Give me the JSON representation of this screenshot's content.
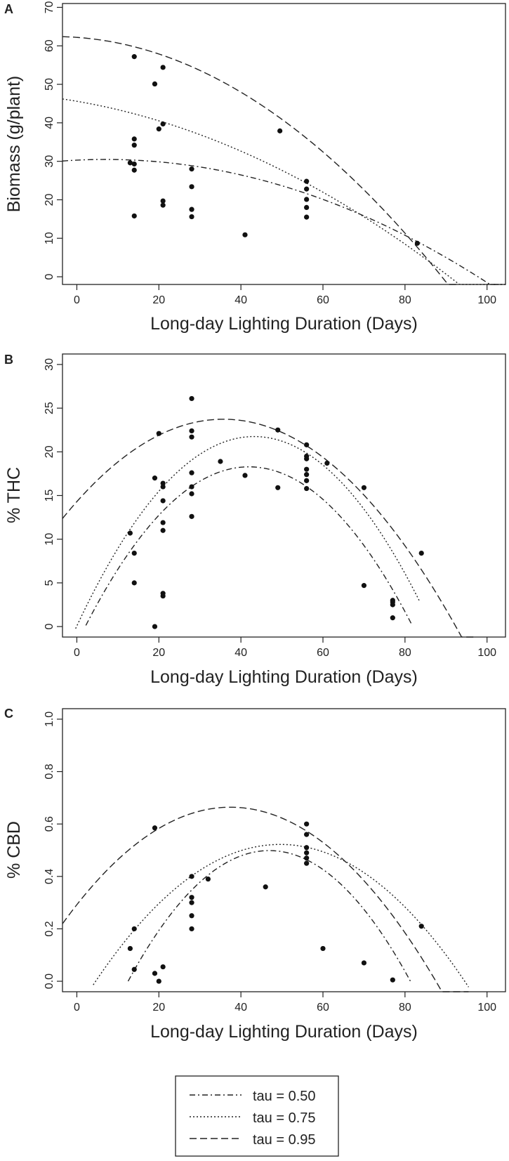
{
  "chart_data": [
    {
      "panel": "A",
      "type": "scatter",
      "title": "",
      "xlabel": "Long-day Lighting Duration (Days)",
      "ylabel": "Biomass (g/plant)",
      "xlim": [
        -3.5,
        104.5
      ],
      "ylim": [
        -2,
        71
      ],
      "x_ticks": [
        0,
        20,
        40,
        60,
        80,
        100
      ],
      "y_ticks": [
        0,
        10,
        20,
        30,
        40,
        50,
        60,
        70
      ],
      "points": [
        {
          "x": 14,
          "y": 57.2
        },
        {
          "x": 21,
          "y": 54.4
        },
        {
          "x": 19,
          "y": 50.1
        },
        {
          "x": 21,
          "y": 39.7
        },
        {
          "x": 20,
          "y": 38.4
        },
        {
          "x": 49.5,
          "y": 37.9
        },
        {
          "x": 14,
          "y": 35.8
        },
        {
          "x": 14,
          "y": 34.2
        },
        {
          "x": 13,
          "y": 29.6
        },
        {
          "x": 14,
          "y": 29.3
        },
        {
          "x": 28,
          "y": 28.0
        },
        {
          "x": 14,
          "y": 27.7
        },
        {
          "x": 56,
          "y": 24.8
        },
        {
          "x": 28,
          "y": 23.4
        },
        {
          "x": 56,
          "y": 22.8
        },
        {
          "x": 56,
          "y": 20.1
        },
        {
          "x": 21,
          "y": 19.7
        },
        {
          "x": 21,
          "y": 18.6
        },
        {
          "x": 56,
          "y": 18.0
        },
        {
          "x": 28,
          "y": 17.5
        },
        {
          "x": 14,
          "y": 15.8
        },
        {
          "x": 28,
          "y": 15.6
        },
        {
          "x": 56,
          "y": 15.5
        },
        {
          "x": 41,
          "y": 10.9
        },
        {
          "x": 83,
          "y": 8.7
        }
      ],
      "curves": [
        {
          "tau": "0.50",
          "style": "dashdot",
          "model": "quadratic",
          "coef": [
            30.3,
            0.052,
            -0.0037
          ],
          "x_range": [
            -3.5,
            104.5
          ]
        },
        {
          "tau": "0.75",
          "style": "dotted",
          "model": "quadratic",
          "coef": [
            45.6,
            -0.184,
            -0.0035
          ],
          "x_range": [
            -3.5,
            104.5
          ]
        },
        {
          "tau": "0.95",
          "style": "dashed",
          "model": "quadratic",
          "coef": [
            62.2,
            -0.076,
            -0.007
          ],
          "x_range": [
            -3.5,
            93.2
          ]
        }
      ]
    },
    {
      "panel": "B",
      "type": "scatter",
      "title": "",
      "xlabel": "Long-day Lighting Duration (Days)",
      "ylabel": "% THC",
      "xlim": [
        -3.5,
        104.5
      ],
      "ylim": [
        -1.2,
        31.2
      ],
      "x_ticks": [
        0,
        20,
        40,
        60,
        80,
        100
      ],
      "y_ticks": [
        0,
        5,
        10,
        15,
        20,
        25,
        30
      ],
      "points": [
        {
          "x": 28,
          "y": 26.1
        },
        {
          "x": 49,
          "y": 22.5
        },
        {
          "x": 28,
          "y": 22.4
        },
        {
          "x": 20,
          "y": 22.1
        },
        {
          "x": 28,
          "y": 21.7
        },
        {
          "x": 56,
          "y": 20.8
        },
        {
          "x": 56,
          "y": 19.5
        },
        {
          "x": 56,
          "y": 19.2
        },
        {
          "x": 35,
          "y": 18.9
        },
        {
          "x": 61,
          "y": 18.7
        },
        {
          "x": 56,
          "y": 18.0
        },
        {
          "x": 28,
          "y": 17.6
        },
        {
          "x": 56,
          "y": 17.4
        },
        {
          "x": 41,
          "y": 17.3
        },
        {
          "x": 19,
          "y": 17.0
        },
        {
          "x": 56,
          "y": 16.7
        },
        {
          "x": 21,
          "y": 16.4
        },
        {
          "x": 21,
          "y": 16.0
        },
        {
          "x": 28,
          "y": 16.0
        },
        {
          "x": 49,
          "y": 15.9
        },
        {
          "x": 70,
          "y": 15.9
        },
        {
          "x": 56,
          "y": 15.8
        },
        {
          "x": 28,
          "y": 15.2
        },
        {
          "x": 21,
          "y": 14.4
        },
        {
          "x": 28,
          "y": 12.6
        },
        {
          "x": 21,
          "y": 11.9
        },
        {
          "x": 21,
          "y": 11.0
        },
        {
          "x": 13,
          "y": 10.7
        },
        {
          "x": 14,
          "y": 8.4
        },
        {
          "x": 84,
          "y": 8.4
        },
        {
          "x": 14,
          "y": 5.0
        },
        {
          "x": 70,
          "y": 4.7
        },
        {
          "x": 21,
          "y": 3.8
        },
        {
          "x": 21,
          "y": 3.5
        },
        {
          "x": 77,
          "y": 3.0
        },
        {
          "x": 77,
          "y": 2.8
        },
        {
          "x": 77,
          "y": 2.5
        },
        {
          "x": 77,
          "y": 1.0
        },
        {
          "x": 19,
          "y": 0.0
        }
      ],
      "curves": [
        {
          "tau": "0.50",
          "style": "dashdot",
          "model": "quadratic",
          "coef": [
            -1.93,
            0.963,
            -0.01147
          ],
          "x_range": [
            2.2,
            81.8
          ]
        },
        {
          "tau": "0.75",
          "style": "dotted",
          "model": "quadratic",
          "coef": [
            0.07,
            1.003,
            -0.0116
          ],
          "x_range": [
            -0.3,
            83.6
          ]
        },
        {
          "tau": "0.95",
          "style": "dashed",
          "model": "quadratic",
          "coef": [
            14.3,
            0.528,
            -0.00739
          ],
          "x_range": [
            -3.5,
            96.8
          ]
        }
      ]
    },
    {
      "panel": "C",
      "type": "scatter",
      "title": "",
      "xlabel": "Long-day Lighting Duration (Days)",
      "ylabel": "% CBD",
      "xlim": [
        -3.5,
        104.5
      ],
      "ylim": [
        -0.04,
        1.04
      ],
      "x_ticks": [
        0,
        20,
        40,
        60,
        80,
        100
      ],
      "y_ticks": [
        "0.0",
        "0.2",
        "0.4",
        "0.6",
        "0.8",
        "1.0"
      ],
      "points": [
        {
          "x": 56,
          "y": 0.6
        },
        {
          "x": 19,
          "y": 0.585
        },
        {
          "x": 56,
          "y": 0.56
        },
        {
          "x": 56,
          "y": 0.51
        },
        {
          "x": 56,
          "y": 0.49
        },
        {
          "x": 56,
          "y": 0.47
        },
        {
          "x": 56,
          "y": 0.45
        },
        {
          "x": 28,
          "y": 0.4
        },
        {
          "x": 32,
          "y": 0.39
        },
        {
          "x": 46,
          "y": 0.36
        },
        {
          "x": 28,
          "y": 0.32
        },
        {
          "x": 28,
          "y": 0.3
        },
        {
          "x": 28,
          "y": 0.25
        },
        {
          "x": 84,
          "y": 0.21
        },
        {
          "x": 14,
          "y": 0.2
        },
        {
          "x": 28,
          "y": 0.2
        },
        {
          "x": 13,
          "y": 0.125
        },
        {
          "x": 60,
          "y": 0.125
        },
        {
          "x": 70,
          "y": 0.07
        },
        {
          "x": 21,
          "y": 0.055
        },
        {
          "x": 14,
          "y": 0.045
        },
        {
          "x": 19,
          "y": 0.03
        },
        {
          "x": 77,
          "y": 0.005
        },
        {
          "x": 20,
          "y": 0.0
        }
      ],
      "curves": [
        {
          "tau": "0.50",
          "style": "dashdot",
          "model": "quadratic",
          "coef": [
            -0.428,
            0.0395,
            -0.000421
          ],
          "x_range": [
            12.5,
            81.5
          ]
        },
        {
          "tau": "0.75",
          "style": "dotted",
          "model": "quadratic",
          "coef": [
            -0.112,
            0.02558,
            -0.000258
          ],
          "x_range": [
            4.0,
            95.5
          ]
        },
        {
          "tau": "0.95",
          "style": "dashed",
          "model": "quadratic",
          "coef": [
            0.292,
            0.01986,
            -0.000265
          ],
          "x_range": [
            -3.5,
            95.5
          ]
        }
      ]
    }
  ],
  "panel_labels": [
    "A",
    "B",
    "C"
  ],
  "legend": {
    "items": [
      {
        "label": "tau = 0.50",
        "style": "dashdot"
      },
      {
        "label": "tau = 0.75",
        "style": "dotted"
      },
      {
        "label": "tau = 0.95",
        "style": "dashed"
      }
    ]
  }
}
